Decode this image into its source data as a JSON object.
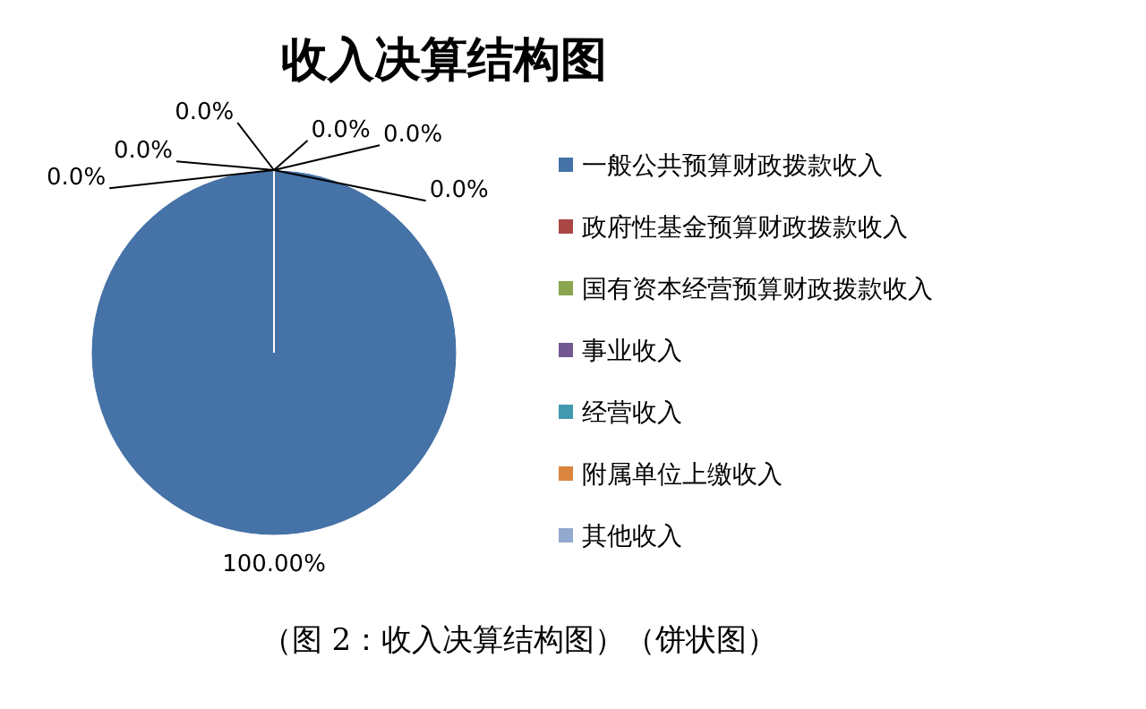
{
  "chart_data": {
    "type": "pie",
    "title": "收入决算结构图",
    "categories": [
      "一般公共预算财政拨款收入",
      "政府性基金预算财政拨款收入",
      "国有资本经营预算财政拨款收入",
      "事业收入",
      "经营收入",
      "附属单位上缴收入",
      "其他收入"
    ],
    "values": [
      100,
      0,
      0,
      0,
      0,
      0,
      0
    ],
    "colors": [
      "#4572a7",
      "#aa4643",
      "#89a54e",
      "#71588f",
      "#4198af",
      "#db843d",
      "#93a9cf"
    ],
    "value_labels": [
      "100.00%",
      "0.0%",
      "0.0%",
      "0.0%",
      "0.0%",
      "0.0%",
      "0.0%"
    ],
    "legend": "right",
    "annotations": [
      "（图 2：收入决算结构图）（饼状图）"
    ]
  }
}
